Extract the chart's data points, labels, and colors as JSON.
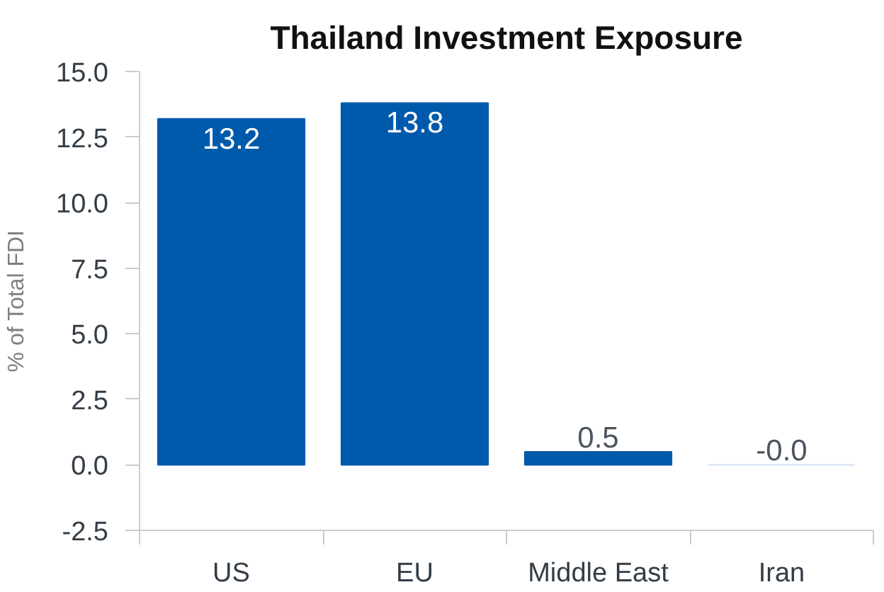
{
  "chart_data": {
    "type": "bar",
    "title": "Thailand Investment Exposure",
    "ylabel": "% of Total FDI",
    "categories": [
      "US",
      "EU",
      "Middle East",
      "Iran"
    ],
    "values": [
      13.2,
      13.8,
      0.5,
      -0.0
    ],
    "value_labels": [
      "13.2",
      "13.8",
      "0.5",
      "-0.0"
    ],
    "colors": [
      "#005aab",
      "#005aab",
      "#005aab",
      "#d3e2f5"
    ],
    "ylim": [
      -2.5,
      15
    ],
    "yticks": [
      -2.5,
      {
        "value": 0,
        "label": "0.0"
      },
      2.5,
      {
        "value": 5,
        "label": "5.0"
      },
      7.5,
      {
        "value": 10,
        "label": "10.0"
      },
      12.5,
      {
        "value": 15,
        "label": "15.0"
      }
    ]
  }
}
